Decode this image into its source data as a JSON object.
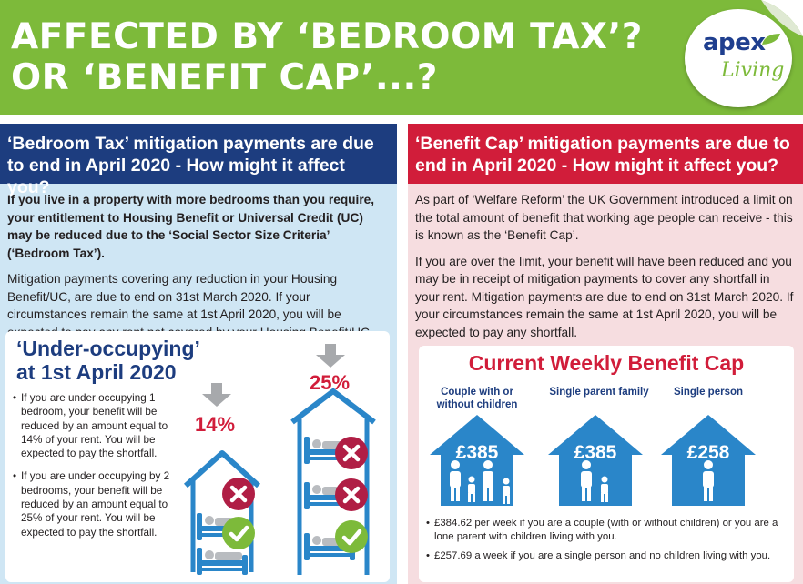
{
  "header": {
    "title_line1": "AFFECTED BY ‘BEDROOM TAX’?",
    "title_line2": "OR ‘BENEFIT CAP’...?",
    "logo_word1": "apex",
    "logo_word2": "Living",
    "brand_green": "#7dba3a",
    "brand_navy": "#1d3d7f",
    "brand_red": "#d11d3a"
  },
  "bedroom_tax": {
    "heading": "‘Bedroom Tax’ mitigation payments are due to end in April 2020 - How might it affect you?",
    "intro": "If you live in a property with more bedrooms than you require, your entitlement to Housing Benefit or Universal Credit (UC) may be reduced due to the ‘Social Sector Size Criteria’ (‘Bedroom Tax’).",
    "paragraph": "Mitigation payments covering any reduction in your Housing Benefit/UC, are due to end on 31st March 2020. If your circumstances remain the same at 1st April 2020, you will be expected to pay any rent not covered by your Housing Benefit/UC payment.",
    "card_title_line1": "‘Under-occupying’",
    "card_title_line2": "at 1st April 2020",
    "bullet1": "If you are under occupying 1 bedroom, your benefit will be reduced by an amount equal to 14% of your rent. You will be expected to pay the shortfall.",
    "bullet2": "If you are under occupying by 2 bedrooms, your benefit will be reduced by an amount equal to 25% of your rent. You will be expected to pay the shortfall.",
    "pct1": "14%",
    "pct2": "25%",
    "icons": [
      "down-arrow-icon",
      "house-icon",
      "bed-icon",
      "cross-icon",
      "tick-icon"
    ]
  },
  "benefit_cap": {
    "heading": "‘Benefit Cap’ mitigation payments are due to end in April 2020 - How might it affect you?",
    "intro": "As part of ‘Welfare Reform’ the UK Government introduced a limit on the total amount of benefit that working age people can receive - this is known as the ‘Benefit Cap’.",
    "paragraph": "If you are over the limit, your benefit will have been reduced and you may be in receipt of mitigation payments to cover any shortfall in your rent. Mitigation payments are due to end on 31st March 2020. If your circumstances remain the same at 1st April 2020, you will be expected to pay any shortfall.",
    "card_title": "Current Weekly Benefit Cap",
    "columns": [
      {
        "label": "Couple with or without children",
        "amount": "£385"
      },
      {
        "label": "Single parent family",
        "amount": "£385"
      },
      {
        "label": "Single person",
        "amount": "£258"
      }
    ],
    "note1": "£384.62 per week if you are a couple (with or without children) or you are a lone parent with children living with you.",
    "note2": "£257.69 a week if you are a single person and no children living with you.",
    "house_color": "#2a86c9"
  }
}
